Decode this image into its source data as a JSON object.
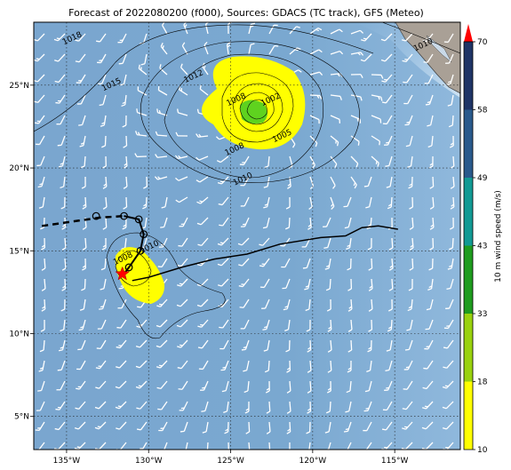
{
  "title": "Forecast of 2022080200 (f000), Sources: GDACS (TC track), GFS (Meteo)",
  "map": {
    "lon_range": [
      -137,
      -111
    ],
    "lat_range": [
      3,
      28.8
    ],
    "lon_ticks": [
      {
        "value": -135,
        "label": "135°W"
      },
      {
        "value": -130,
        "label": "130°W"
      },
      {
        "value": -125,
        "label": "125°W"
      },
      {
        "value": -120,
        "label": "120°W"
      },
      {
        "value": -115,
        "label": "115°W"
      }
    ],
    "lat_ticks": [
      {
        "value": 5,
        "label": "5°N"
      },
      {
        "value": 10,
        "label": "10°N"
      },
      {
        "value": 15,
        "label": "15°N"
      },
      {
        "value": 20,
        "label": "20°N"
      },
      {
        "value": 25,
        "label": "25°N"
      }
    ],
    "grid": "dotted",
    "colors": {
      "ocean": "#7ba6cf",
      "land": "#a9a096",
      "cyclone_strong": "#ffff00",
      "cyclone_core": "#5fd21f"
    },
    "isobars": [
      {
        "value": "1018",
        "lon": -134.6,
        "lat": 27.7
      },
      {
        "value": "1015",
        "lon": -132.2,
        "lat": 24.9
      },
      {
        "value": "1012",
        "lon": -127.2,
        "lat": 25.4
      },
      {
        "value": "1010",
        "lon": -124.2,
        "lat": 19.2
      },
      {
        "value": "1008",
        "lon": -124.7,
        "lat": 21.0
      },
      {
        "value": "1005",
        "lon": -121.8,
        "lat": 21.8
      },
      {
        "value": "1008",
        "lon": -124.6,
        "lat": 24.0
      },
      {
        "value": "1002",
        "lon": -122.5,
        "lat": 24.0
      },
      {
        "value": "1010",
        "lon": -129.9,
        "lat": 15.1
      },
      {
        "value": "1008",
        "lon": -131.5,
        "lat": 14.4
      },
      {
        "value": "1010",
        "lon": -113.2,
        "lat": 27.3
      }
    ],
    "forecast_track": [
      {
        "lon": -131.5,
        "lat": 17.1
      },
      {
        "lon": -130.6,
        "lat": 16.9
      },
      {
        "lon": -130.3,
        "lat": 16.0
      },
      {
        "lon": -130.5,
        "lat": 15.0
      },
      {
        "lon": -131.2,
        "lat": 14.0
      },
      {
        "lon": -131.5,
        "lat": 13.6
      }
    ],
    "past_track_dashed": [
      {
        "lon": -136.5,
        "lat": 16.5
      },
      {
        "lon": -133.0,
        "lat": 17.0
      },
      {
        "lon": -131.5,
        "lat": 17.1
      }
    ],
    "track_points": [
      {
        "lon": -133.2,
        "lat": 17.1
      },
      {
        "lon": -131.5,
        "lat": 17.1
      },
      {
        "lon": -130.6,
        "lat": 16.9
      },
      {
        "lon": -130.3,
        "lat": 16.0
      },
      {
        "lon": -130.5,
        "lat": 15.0
      },
      {
        "lon": -131.2,
        "lat": 14.0
      }
    ],
    "current_position": {
      "lon": -131.6,
      "lat": 13.6,
      "marker": "star-icon"
    },
    "observed_track": [
      {
        "lon": -131.0,
        "lat": 13.2
      },
      {
        "lon": -130.0,
        "lat": 13.4
      },
      {
        "lon": -128.0,
        "lat": 14.0
      },
      {
        "lon": -126.0,
        "lat": 14.5
      },
      {
        "lon": -124.0,
        "lat": 14.8
      },
      {
        "lon": -122.0,
        "lat": 15.4
      },
      {
        "lon": -119.5,
        "lat": 15.8
      },
      {
        "lon": -118.0,
        "lat": 15.9
      },
      {
        "lon": -117.0,
        "lat": 16.4
      },
      {
        "lon": -116.0,
        "lat": 16.5
      },
      {
        "lon": -114.8,
        "lat": 16.3
      }
    ]
  },
  "colorbar": {
    "label": "10 m wind speed (m/s)",
    "ticks": [
      "10",
      "18",
      "33",
      "43",
      "49",
      "58",
      "70"
    ],
    "colors": [
      "#ffff00",
      "#9ad20f",
      "#1f9c1f",
      "#129a94",
      "#2a5a8c",
      "#1f3466"
    ],
    "extend_color": "#ff0000"
  }
}
